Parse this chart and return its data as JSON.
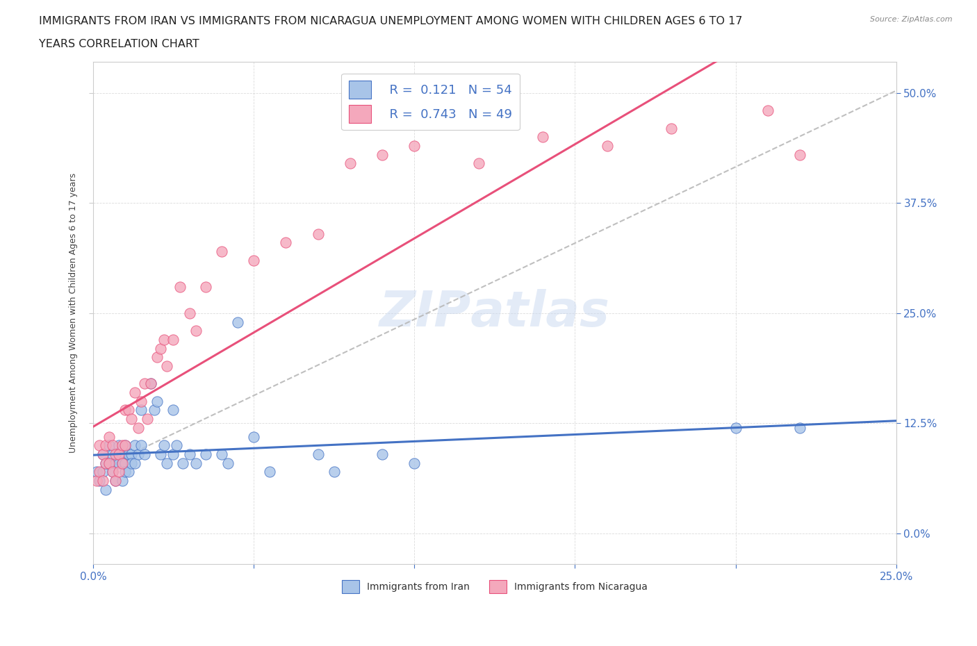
{
  "title_line1": "IMMIGRANTS FROM IRAN VS IMMIGRANTS FROM NICARAGUA UNEMPLOYMENT AMONG WOMEN WITH CHILDREN AGES 6 TO 17",
  "title_line2": "YEARS CORRELATION CHART",
  "source": "Source: ZipAtlas.com",
  "ylabel": "Unemployment Among Women with Children Ages 6 to 17 years",
  "xlim": [
    0.0,
    0.25
  ],
  "ylim": [
    -0.035,
    0.535
  ],
  "iran_R": "0.121",
  "iran_N": "54",
  "nicaragua_R": "0.743",
  "nicaragua_N": "49",
  "iran_color": "#a8c4e8",
  "nicaragua_color": "#f4a8bc",
  "iran_line_color": "#4472c4",
  "nicaragua_line_color": "#e8507a",
  "diag_color": "#b8b8b8",
  "watermark_color": "#c8d8f0",
  "iran_scatter_x": [
    0.001,
    0.002,
    0.003,
    0.003,
    0.004,
    0.004,
    0.005,
    0.005,
    0.006,
    0.006,
    0.007,
    0.007,
    0.008,
    0.008,
    0.009,
    0.009,
    0.009,
    0.01,
    0.01,
    0.01,
    0.011,
    0.011,
    0.012,
    0.012,
    0.013,
    0.013,
    0.014,
    0.015,
    0.015,
    0.016,
    0.018,
    0.019,
    0.02,
    0.021,
    0.022,
    0.023,
    0.025,
    0.025,
    0.026,
    0.028,
    0.03,
    0.032,
    0.035,
    0.04,
    0.042,
    0.045,
    0.05,
    0.055,
    0.07,
    0.075,
    0.09,
    0.1,
    0.2,
    0.22
  ],
  "iran_scatter_y": [
    0.07,
    0.06,
    0.09,
    0.07,
    0.08,
    0.05,
    0.1,
    0.08,
    0.09,
    0.07,
    0.08,
    0.06,
    0.1,
    0.08,
    0.09,
    0.08,
    0.06,
    0.1,
    0.08,
    0.07,
    0.09,
    0.07,
    0.09,
    0.08,
    0.1,
    0.08,
    0.09,
    0.1,
    0.14,
    0.09,
    0.17,
    0.14,
    0.15,
    0.09,
    0.1,
    0.08,
    0.14,
    0.09,
    0.1,
    0.08,
    0.09,
    0.08,
    0.09,
    0.09,
    0.08,
    0.24,
    0.11,
    0.07,
    0.09,
    0.07,
    0.09,
    0.08,
    0.12,
    0.12
  ],
  "nicaragua_scatter_x": [
    0.001,
    0.002,
    0.002,
    0.003,
    0.003,
    0.004,
    0.004,
    0.005,
    0.005,
    0.006,
    0.006,
    0.007,
    0.007,
    0.008,
    0.008,
    0.009,
    0.009,
    0.01,
    0.01,
    0.011,
    0.012,
    0.013,
    0.014,
    0.015,
    0.016,
    0.017,
    0.018,
    0.02,
    0.021,
    0.022,
    0.023,
    0.025,
    0.027,
    0.03,
    0.032,
    0.035,
    0.04,
    0.05,
    0.06,
    0.07,
    0.08,
    0.09,
    0.1,
    0.12,
    0.14,
    0.16,
    0.18,
    0.21,
    0.22
  ],
  "nicaragua_scatter_y": [
    0.06,
    0.1,
    0.07,
    0.09,
    0.06,
    0.1,
    0.08,
    0.11,
    0.08,
    0.1,
    0.07,
    0.09,
    0.06,
    0.09,
    0.07,
    0.1,
    0.08,
    0.14,
    0.1,
    0.14,
    0.13,
    0.16,
    0.12,
    0.15,
    0.17,
    0.13,
    0.17,
    0.2,
    0.21,
    0.22,
    0.19,
    0.22,
    0.28,
    0.25,
    0.23,
    0.28,
    0.32,
    0.31,
    0.33,
    0.34,
    0.42,
    0.43,
    0.44,
    0.42,
    0.45,
    0.44,
    0.46,
    0.48,
    0.43
  ],
  "yticks": [
    0.0,
    0.125,
    0.25,
    0.375,
    0.5
  ],
  "xticks": [
    0.0,
    0.05,
    0.1,
    0.15,
    0.2,
    0.25
  ],
  "grid_color": "#cccccc",
  "background_color": "#ffffff",
  "title_fontsize": 11.5,
  "axis_label_fontsize": 9,
  "tick_fontsize": 10
}
